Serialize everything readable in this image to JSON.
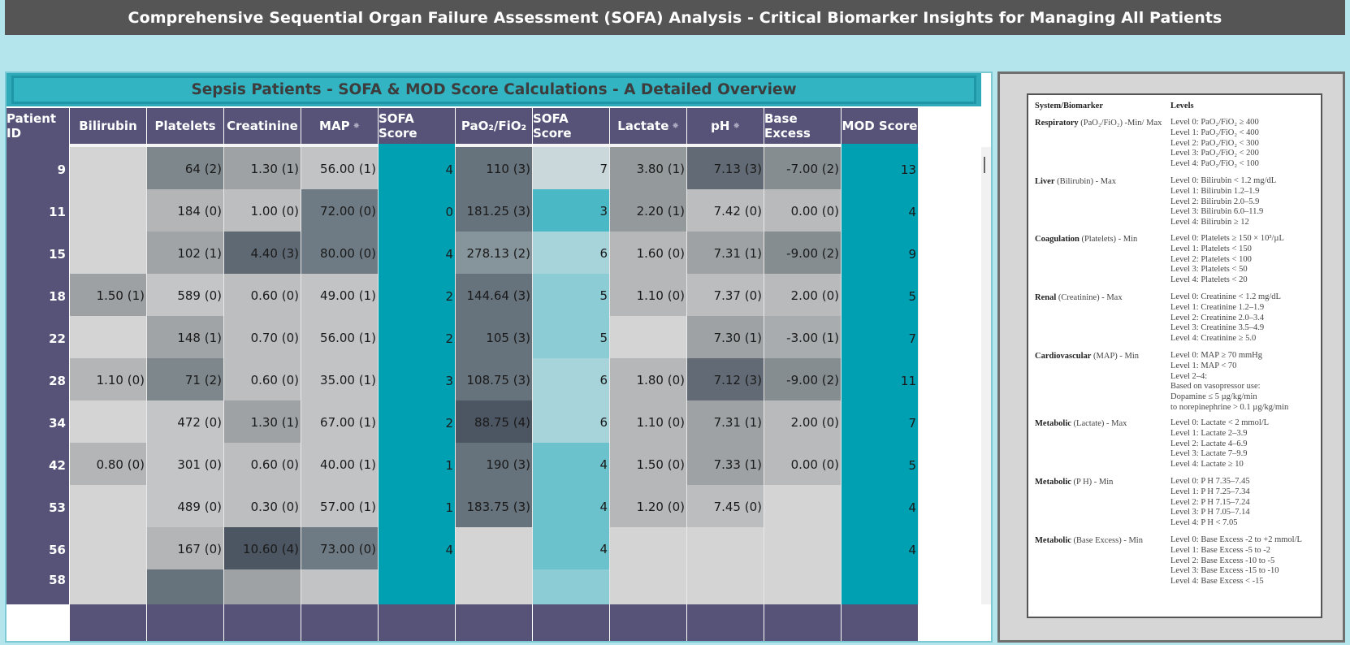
{
  "title": "Comprehensive Sequential Organ Failure Assessment (SOFA) Analysis - Critical Biomarker Insights for Managing All Patients",
  "subtitle": "Sepsis Patients - SOFA & MOD Score Calculations - A Detailed Overview",
  "colors": {
    "header": "#575378",
    "teal": "#00a0b3",
    "title_bar": "#555555",
    "background": "#b4e5ec"
  },
  "columns": [
    {
      "label": "Patient ID",
      "pinned": false
    },
    {
      "label": "Bilirubin",
      "pinned": false
    },
    {
      "label": "Platelets",
      "pinned": false
    },
    {
      "label": "Creatinine",
      "pinned": false
    },
    {
      "label": "MAP",
      "pinned": true
    },
    {
      "label": "SOFA Score",
      "pinned": false
    },
    {
      "label": "PaO₂/FiO₂",
      "pinned": false
    },
    {
      "label": "SOFA Score",
      "pinned": false
    },
    {
      "label": "Lactate",
      "pinned": true
    },
    {
      "label": "pH",
      "pinned": true
    },
    {
      "label": "Base Excess",
      "pinned": false
    },
    {
      "label": "MOD Score",
      "pinned": false
    }
  ],
  "rows": [
    {
      "id": "9",
      "cells": [
        [
          "",
          "#d4d4d4"
        ],
        [
          "64 (2)",
          "#7d878c"
        ],
        [
          "1.30 (1)",
          "#9ea2a4"
        ],
        [
          "56.00 (1)",
          "#c2c3c4"
        ],
        [
          "4",
          ""
        ],
        [
          "110 (3)",
          "#66727c"
        ],
        [
          "7",
          "#cbd8db"
        ],
        [
          "3.80 (1)",
          "#949a9c"
        ],
        [
          "7.13 (3)",
          "#626b75"
        ],
        [
          "-7.00 (2)",
          "#858d91"
        ],
        [
          "13",
          ""
        ]
      ]
    },
    {
      "id": "11",
      "cells": [
        [
          "",
          "#d4d4d4"
        ],
        [
          "184 (0)",
          "#b3b5b7"
        ],
        [
          "1.00 (0)",
          "#bdbebf"
        ],
        [
          "72.00 (0)",
          "#6e7b84"
        ],
        [
          "0",
          ""
        ],
        [
          "181.25 (3)",
          "#66727c"
        ],
        [
          "3",
          "#4ab8c5"
        ],
        [
          "2.20 (1)",
          "#949a9c"
        ],
        [
          "7.42 (0)",
          "#bcbdbe"
        ],
        [
          "0.00 (0)",
          "#b9babb"
        ],
        [
          "4",
          ""
        ]
      ]
    },
    {
      "id": "15",
      "cells": [
        [
          "",
          "#d4d4d4"
        ],
        [
          "102 (1)",
          "#a0a4a7"
        ],
        [
          "4.40 (3)",
          "#5e6974"
        ],
        [
          "80.00 (0)",
          "#6e7b84"
        ],
        [
          "4",
          ""
        ],
        [
          "278.13 (2)",
          "#86949b"
        ],
        [
          "6",
          "#a6d4da"
        ],
        [
          "1.60 (0)",
          "#b5b7b8"
        ],
        [
          "7.31 (1)",
          "#9ea2a4"
        ],
        [
          "-9.00 (2)",
          "#858d91"
        ],
        [
          "9",
          ""
        ]
      ]
    },
    {
      "id": "18",
      "cells": [
        [
          "1.50 (1)",
          "#9ea1a3"
        ],
        [
          "589 (0)",
          "#c4c5c6"
        ],
        [
          "0.60 (0)",
          "#bdbebf"
        ],
        [
          "49.00 (1)",
          "#c2c3c4"
        ],
        [
          "2",
          ""
        ],
        [
          "144.64 (3)",
          "#66727c"
        ],
        [
          "5",
          "#8ccdd5"
        ],
        [
          "1.10 (0)",
          "#b5b7b8"
        ],
        [
          "7.37 (0)",
          "#bcbdbe"
        ],
        [
          "2.00 (0)",
          "#b9babb"
        ],
        [
          "5",
          ""
        ]
      ]
    },
    {
      "id": "22",
      "cells": [
        [
          "",
          "#d4d4d4"
        ],
        [
          "148 (1)",
          "#a0a4a7"
        ],
        [
          "0.70 (0)",
          "#bdbebf"
        ],
        [
          "56.00 (1)",
          "#c2c3c4"
        ],
        [
          "2",
          ""
        ],
        [
          "105 (3)",
          "#66727c"
        ],
        [
          "5",
          "#8ccdd5"
        ],
        [
          "",
          "#d4d4d4"
        ],
        [
          "7.30 (1)",
          "#9ea2a4"
        ],
        [
          "-3.00 (1)",
          "#a9acae"
        ],
        [
          "7",
          ""
        ]
      ]
    },
    {
      "id": "28",
      "cells": [
        [
          "1.10 (0)",
          "#b3b5b7"
        ],
        [
          "71 (2)",
          "#7d878c"
        ],
        [
          "0.60 (0)",
          "#bdbebf"
        ],
        [
          "35.00 (1)",
          "#c2c3c4"
        ],
        [
          "3",
          ""
        ],
        [
          "108.75 (3)",
          "#66727c"
        ],
        [
          "6",
          "#a6d4da"
        ],
        [
          "1.80 (0)",
          "#b5b7b8"
        ],
        [
          "7.12 (3)",
          "#626b75"
        ],
        [
          "-9.00 (2)",
          "#858d91"
        ],
        [
          "11",
          ""
        ]
      ]
    },
    {
      "id": "34",
      "cells": [
        [
          "",
          "#d4d4d4"
        ],
        [
          "472 (0)",
          "#c4c5c6"
        ],
        [
          "1.30 (1)",
          "#9ea2a4"
        ],
        [
          "67.00 (1)",
          "#c2c3c4"
        ],
        [
          "2",
          ""
        ],
        [
          "88.75 (4)",
          "#4c5562"
        ],
        [
          "6",
          "#a6d4da"
        ],
        [
          "1.10 (0)",
          "#b5b7b8"
        ],
        [
          "7.31 (1)",
          "#9ea2a4"
        ],
        [
          "2.00 (0)",
          "#b9babb"
        ],
        [
          "7",
          ""
        ]
      ]
    },
    {
      "id": "42",
      "cells": [
        [
          "0.80 (0)",
          "#b3b5b7"
        ],
        [
          "301 (0)",
          "#c4c5c6"
        ],
        [
          "0.60 (0)",
          "#bdbebf"
        ],
        [
          "40.00 (1)",
          "#c2c3c4"
        ],
        [
          "1",
          ""
        ],
        [
          "190 (3)",
          "#66727c"
        ],
        [
          "4",
          "#6cc2cc"
        ],
        [
          "1.50 (0)",
          "#b5b7b8"
        ],
        [
          "7.33 (1)",
          "#9ea2a4"
        ],
        [
          "0.00 (0)",
          "#b9babb"
        ],
        [
          "5",
          ""
        ]
      ]
    },
    {
      "id": "53",
      "cells": [
        [
          "",
          "#d4d4d4"
        ],
        [
          "489 (0)",
          "#c4c5c6"
        ],
        [
          "0.30 (0)",
          "#bdbebf"
        ],
        [
          "57.00 (1)",
          "#c2c3c4"
        ],
        [
          "1",
          ""
        ],
        [
          "183.75 (3)",
          "#66727c"
        ],
        [
          "4",
          "#6cc2cc"
        ],
        [
          "1.20 (0)",
          "#b5b7b8"
        ],
        [
          "7.45 (0)",
          "#bcbdbe"
        ],
        [
          "",
          "#d4d4d4"
        ],
        [
          "4",
          ""
        ]
      ]
    },
    {
      "id": "56",
      "cells": [
        [
          "",
          "#d4d4d4"
        ],
        [
          "167 (0)",
          "#b3b5b7"
        ],
        [
          "10.60 (4)",
          "#4c5562"
        ],
        [
          "73.00 (0)",
          "#6e7b84"
        ],
        [
          "4",
          ""
        ],
        [
          "",
          "#d4d4d4"
        ],
        [
          "4",
          "#6cc2cc"
        ],
        [
          "",
          "#d4d4d4"
        ],
        [
          "",
          "#d4d4d4"
        ],
        [
          "",
          "#d4d4d4"
        ],
        [
          "4",
          ""
        ]
      ]
    },
    {
      "id": "58",
      "cells": [
        [
          "",
          "#d4d4d4"
        ],
        [
          "",
          "#66727c"
        ],
        [
          "",
          "#9ea2a4"
        ],
        [
          "",
          "#c2c3c4"
        ],
        [
          "",
          ""
        ],
        [
          "",
          "#d4d4d4"
        ],
        [
          "",
          "#8ccdd5"
        ],
        [
          "",
          "#d4d4d4"
        ],
        [
          "",
          "#d4d4d4"
        ],
        [
          "",
          "#d4d4d4"
        ],
        [
          "",
          ""
        ]
      ]
    }
  ],
  "reference": {
    "header_system": "System/Biomarker",
    "header_levels": "Levels",
    "sections": [
      {
        "system": "Respiratory",
        "detail": "(PaO₂/FiO₂) -Min/ Max",
        "levels": [
          "Level 0: PaO₂/FiO₂ ≥ 400",
          "Level 1: PaO₂/FiO₂ < 400",
          "Level 2: PaO₂/FiO₂ < 300",
          "Level 3: PaO₂/FiO₂ < 200",
          "Level 4: PaO₂/FiO₂ < 100"
        ]
      },
      {
        "system": "Liver",
        "detail": "(Bilirubin) - Max",
        "levels": [
          "Level 0: Bilirubin < 1.2 mg/dL",
          "Level 1: Bilirubin 1.2–1.9",
          "Level 2: Bilirubin 2.0–5.9",
          "Level 3: Bilirubin 6.0–11.9",
          "Level 4: Bilirubin ≥ 12"
        ]
      },
      {
        "system": "Coagulation",
        "detail": "(Platelets) - Min",
        "levels": [
          "Level 0: Platelets ≥ 150 × 10³/µL",
          "Level 1: Platelets < 150",
          "Level 2: Platelets < 100",
          "Level 3: Platelets < 50",
          "Level 4: Platelets < 20"
        ]
      },
      {
        "system": "Renal",
        "detail": "(Creatinine) - Max",
        "levels": [
          "Level 0: Creatinine < 1.2 mg/dL",
          "Level 1: Creatinine 1.2–1.9",
          "Level 2: Creatinine 2.0–3.4",
          "Level 3: Creatinine 3.5–4.9",
          "Level 4: Creatinine ≥ 5.0"
        ]
      },
      {
        "system": "Cardiovascular",
        "detail": "(MAP) - Min",
        "levels": [
          "Level 0: MAP ≥ 70 mmHg",
          "Level 1: MAP < 70",
          "Level 2–4:",
          "Based on vasopressor use:",
          "Dopamine ≤ 5 µg/kg/min",
          "to norepinephrine > 0.1 µg/kg/min"
        ]
      },
      {
        "system": "Metabolic",
        "detail": "(Lactate) - Max",
        "levels": [
          "Level 0: Lactate < 2 mmol/L",
          "Level 1: Lactate 2–3.9",
          "Level 2: Lactate 4–6.9",
          "Level 3: Lactate 7–9.9",
          "Level 4: Lactate ≥ 10"
        ]
      },
      {
        "system": "Metabolic",
        "detail": "(P H) - Min",
        "levels": [
          "Level 0: P H 7.35–7.45",
          "Level 1: P H 7.25–7.34",
          "Level 2: P H 7.15–7.24",
          "Level 3: P H 7.05–7.14",
          "Level 4: P H < 7.05"
        ]
      },
      {
        "system": "Metabolic",
        "detail": "(Base Excess) - Min",
        "levels": [
          "Level 0: Base Excess -2 to +2 mmol/L",
          "Level 1: Base Excess -5 to -2",
          "Level 2: Base Excess -10 to -5",
          "Level 3: Base Excess -15 to -10",
          "Level 4: Base Excess < -15"
        ]
      }
    ]
  }
}
